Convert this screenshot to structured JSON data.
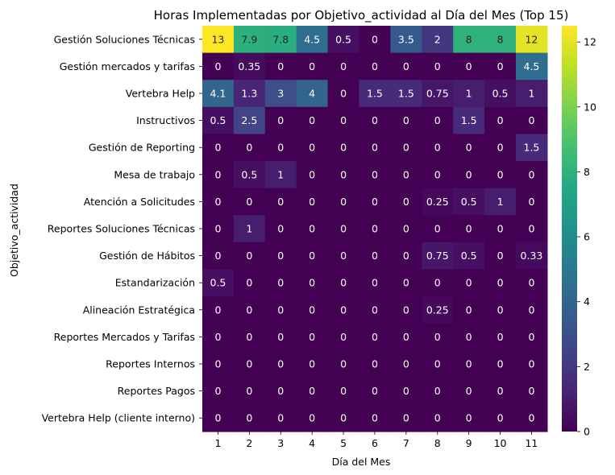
{
  "chart_data": {
    "type": "heatmap",
    "title": "Horas Implementadas por Objetivo_actividad al Día del Mes (Top 15)",
    "xlabel": "Día del Mes",
    "ylabel": "Objetivo_actividad",
    "colormap": "viridis",
    "colorbar_range": [
      0,
      12.5
    ],
    "colorbar_ticks": [
      0,
      2,
      4,
      6,
      8,
      10,
      12
    ],
    "x": [
      "1",
      "2",
      "3",
      "4",
      "5",
      "6",
      "7",
      "8",
      "9",
      "10",
      "11"
    ],
    "y": [
      "Gestión Soluciones Técnicas",
      "Gestión mercados y tarifas",
      "Vertebra Help",
      "Instructivos",
      "Gestión de Reporting",
      "Mesa de trabajo",
      "Atención a Solicitudes",
      "Reportes Soluciones Técnicas",
      "Gestión de Hábitos",
      "Estandarización",
      "Alineación Estratégica",
      "Reportes Mercados y Tarifas",
      "Reportes Internos",
      "Reportes Pagos",
      "Vertebra Help (cliente interno)"
    ],
    "values": [
      [
        12.5,
        7.9,
        7.8,
        4.5,
        0.5,
        0,
        3.5,
        2,
        8,
        8,
        12
      ],
      [
        0,
        0.35,
        0,
        0,
        0,
        0,
        0,
        0,
        0,
        0,
        4.5
      ],
      [
        4.1,
        1.3,
        3,
        4,
        0,
        1.5,
        1.5,
        0.75,
        1,
        0.5,
        1
      ],
      [
        0.5,
        2.5,
        0,
        0,
        0,
        0,
        0,
        0,
        1.5,
        0,
        0
      ],
      [
        0,
        0,
        0,
        0,
        0,
        0,
        0,
        0,
        0,
        0,
        1.5
      ],
      [
        0,
        0.5,
        1,
        0,
        0,
        0,
        0,
        0,
        0,
        0,
        0
      ],
      [
        0,
        0,
        0,
        0,
        0,
        0,
        0,
        0.25,
        0.5,
        1,
        0
      ],
      [
        0,
        1,
        0,
        0,
        0,
        0,
        0,
        0,
        0,
        0,
        0
      ],
      [
        0,
        0,
        0,
        0,
        0,
        0,
        0,
        0.75,
        0.5,
        0,
        0.33
      ],
      [
        0.5,
        0,
        0,
        0,
        0,
        0,
        0,
        0,
        0,
        0,
        0
      ],
      [
        0,
        0,
        0,
        0,
        0,
        0,
        0,
        0.25,
        0,
        0,
        0
      ],
      [
        0,
        0,
        0,
        0,
        0,
        0,
        0,
        0,
        0,
        0,
        0
      ],
      [
        0,
        0,
        0,
        0,
        0,
        0,
        0,
        0,
        0,
        0,
        0
      ],
      [
        0,
        0,
        0,
        0,
        0,
        0,
        0,
        0,
        0,
        0,
        0
      ],
      [
        0,
        0,
        0,
        0,
        0,
        0,
        0,
        0,
        0,
        0,
        0
      ]
    ],
    "annotations": [
      [
        "13",
        "7.9",
        "7.8",
        "4.5",
        "0.5",
        "0",
        "3.5",
        "2",
        "8",
        "8",
        "12"
      ],
      [
        "0",
        "0.35",
        "0",
        "0",
        "0",
        "0",
        "0",
        "0",
        "0",
        "0",
        "4.5"
      ],
      [
        "4.1",
        "1.3",
        "3",
        "4",
        "0",
        "1.5",
        "1.5",
        "0.75",
        "1",
        "0.5",
        "1"
      ],
      [
        "0.5",
        "2.5",
        "0",
        "0",
        "0",
        "0",
        "0",
        "0",
        "1.5",
        "0",
        "0"
      ],
      [
        "0",
        "0",
        "0",
        "0",
        "0",
        "0",
        "0",
        "0",
        "0",
        "0",
        "1.5"
      ],
      [
        "0",
        "0.5",
        "1",
        "0",
        "0",
        "0",
        "0",
        "0",
        "0",
        "0",
        "0"
      ],
      [
        "0",
        "0",
        "0",
        "0",
        "0",
        "0",
        "0",
        "0.25",
        "0.5",
        "1",
        "0"
      ],
      [
        "0",
        "1",
        "0",
        "0",
        "0",
        "0",
        "0",
        "0",
        "0",
        "0",
        "0"
      ],
      [
        "0",
        "0",
        "0",
        "0",
        "0",
        "0",
        "0",
        "0.75",
        "0.5",
        "0",
        "0.33"
      ],
      [
        "0.5",
        "0",
        "0",
        "0",
        "0",
        "0",
        "0",
        "0",
        "0",
        "0",
        "0"
      ],
      [
        "0",
        "0",
        "0",
        "0",
        "0",
        "0",
        "0",
        "0.25",
        "0",
        "0",
        "0"
      ],
      [
        "0",
        "0",
        "0",
        "0",
        "0",
        "0",
        "0",
        "0",
        "0",
        "0",
        "0"
      ],
      [
        "0",
        "0",
        "0",
        "0",
        "0",
        "0",
        "0",
        "0",
        "0",
        "0",
        "0"
      ],
      [
        "0",
        "0",
        "0",
        "0",
        "0",
        "0",
        "0",
        "0",
        "0",
        "0",
        "0"
      ],
      [
        "0",
        "0",
        "0",
        "0",
        "0",
        "0",
        "0",
        "0",
        "0",
        "0",
        "0"
      ]
    ],
    "grid": false,
    "legend": "colorbar-right"
  }
}
